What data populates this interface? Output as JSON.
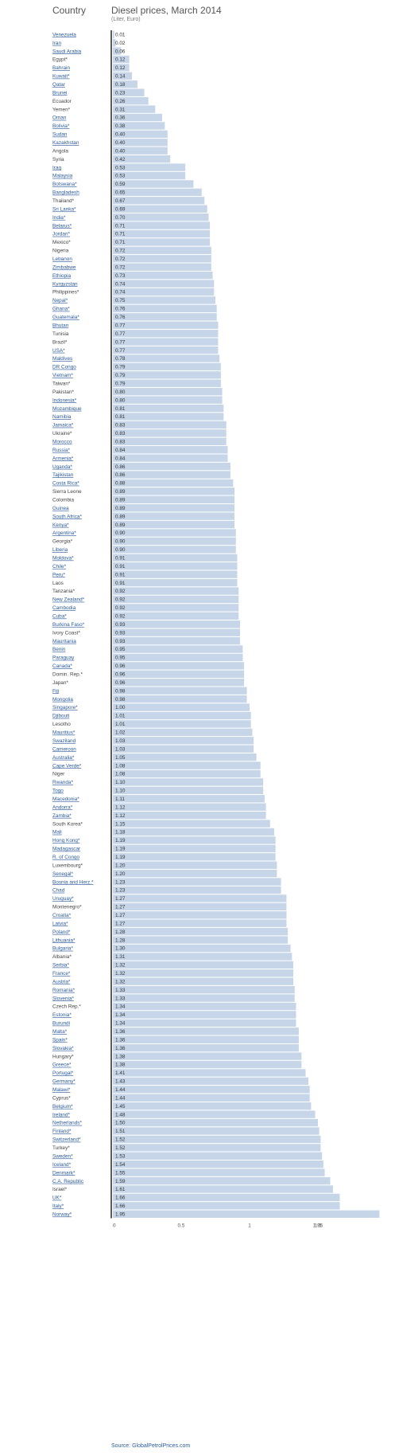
{
  "header": {
    "country_label": "Country",
    "title": "Diesel prices, March 2014",
    "subtitle": "(Liter, Euro)"
  },
  "source": "Source: GlobalPetrolPrices.com",
  "colors": {
    "bar": "#c6d6e8",
    "axis": "#333333",
    "link": "#2b5a9c",
    "plain": "#444444",
    "value": "#333333"
  },
  "chart_data": {
    "type": "bar",
    "orientation": "horizontal",
    "title": "Diesel prices, March 2014",
    "subtitle": "(Liter, Euro)",
    "xlim": [
      0,
      1.05
    ],
    "xticks": [
      0,
      0.5,
      1,
      1.5
    ],
    "xtick_labels": [
      "0",
      "0.5",
      "1",
      "1.5"
    ],
    "max_tick_label": "1.95",
    "categories": [
      "Venezuela",
      "Iran",
      "Saudi Arabia",
      "Egypt*",
      "Bahrain",
      "Kuwait*",
      "Qatar",
      "Brunei",
      "Ecuador",
      "Yemen*",
      "Oman",
      "Bolivia*",
      "Sudan",
      "Kazakhstan",
      "Angola",
      "Syria",
      "Iraq",
      "Malaysia",
      "Botswana*",
      "Bangladesh",
      "Thailand*",
      "Sri Lanka*",
      "India*",
      "Belarus*",
      "Jordan*",
      "Mexico*",
      "Nigeria",
      "Lebanon",
      "Zimbabwe",
      "Ethiopia",
      "Kyrgyzstan",
      "Philippines*",
      "Nepal*",
      "Ghana*",
      "Guatemala*",
      "Bhutan",
      "Tunisia",
      "Brazil*",
      "USA*",
      "Maldives",
      "DR Congo",
      "Vietnam*",
      "Taiwan*",
      "Pakistan*",
      "Indonesia*",
      "Mozambique",
      "Namibia",
      "Jamaica*",
      "Ukraine*",
      "Morocco",
      "Russia*",
      "Armenia*",
      "Uganda*",
      "Tajikistan",
      "Costa Rica*",
      "Sierra Leone",
      "Colombia",
      "Guinea",
      "South Africa*",
      "Kenya*",
      "Argentina*",
      "Georgia*",
      "Liberia",
      "Moldova*",
      "Chile*",
      "Peru*",
      "Laos",
      "Tanzania*",
      "New Zealand*",
      "Cambodia",
      "Cuba*",
      "Burkina Faso*",
      "Ivory Coast*",
      "Mauritania",
      "Benin",
      "Paraguay",
      "Canada*",
      "Domin. Rep.*",
      "Japan*",
      "Fiji",
      "Mongolia",
      "Singapore*",
      "Djibouti",
      "Lesotho",
      "Mauritius*",
      "Swaziland",
      "Cameroon",
      "Australia*",
      "Cape Verde*",
      "Niger",
      "Rwanda*",
      "Togo",
      "Macedonia*",
      "Andorra*",
      "Zambia*",
      "South Korea*",
      "Mali",
      "Hong Kong*",
      "Madagascar",
      "R. of Congo",
      "Luxembourg*",
      "Senegal*",
      "Bosnia and Herz.*",
      "Chad",
      "Uruguay*",
      "Montenegro*",
      "Croatia*",
      "Latvia*",
      "Poland*",
      "Lithuania*",
      "Bulgaria*",
      "Albania*",
      "Serbia*",
      "France*",
      "Austria*",
      "Romania*",
      "Slovenia*",
      "Czech Rep.*",
      "Estonia*",
      "Burundi",
      "Malta*",
      "Spain*",
      "Slovakia*",
      "Hungary*",
      "Greece*",
      "Portugal*",
      "Germany*",
      "Malawi*",
      "Cyprus*",
      "Belgium*",
      "Ireland*",
      "Netherlands*",
      "Finland*",
      "Switzerland*",
      "Turkey*",
      "Sweden*",
      "Iceland*",
      "Denmark*",
      "C.A. Republic",
      "Israel*",
      "UK*",
      "Italy*",
      "Norway*"
    ],
    "values": [
      0.01,
      0.02,
      0.06,
      0.12,
      0.12,
      0.14,
      0.18,
      0.23,
      0.26,
      0.31,
      0.36,
      0.38,
      0.4,
      0.4,
      0.4,
      0.42,
      0.53,
      0.53,
      0.59,
      0.65,
      0.67,
      0.69,
      0.7,
      0.71,
      0.71,
      0.71,
      0.72,
      0.72,
      0.72,
      0.73,
      0.74,
      0.74,
      0.75,
      0.76,
      0.76,
      0.77,
      0.77,
      0.77,
      0.77,
      0.78,
      0.79,
      0.79,
      0.79,
      0.8,
      0.8,
      0.81,
      0.81,
      0.83,
      0.83,
      0.83,
      0.84,
      0.84,
      0.86,
      0.86,
      0.88,
      0.89,
      0.89,
      0.89,
      0.89,
      0.89,
      0.9,
      0.9,
      0.9,
      0.91,
      0.91,
      0.91,
      0.91,
      0.92,
      0.92,
      0.92,
      0.92,
      0.93,
      0.93,
      0.93,
      0.95,
      0.95,
      0.96,
      0.96,
      0.96,
      0.98,
      0.98,
      1.0,
      1.01,
      1.01,
      1.02,
      1.03,
      1.03,
      1.05,
      1.08,
      1.08,
      1.1,
      1.1,
      1.11,
      1.12,
      1.12,
      1.15,
      1.18,
      1.19,
      1.19,
      1.19,
      1.2,
      1.2,
      1.23,
      1.23,
      1.27,
      1.27,
      1.27,
      1.27,
      1.28,
      1.28,
      1.3,
      1.31,
      1.32,
      1.32,
      1.32,
      1.33,
      1.33,
      1.34,
      1.34,
      1.34,
      1.36,
      1.36,
      1.36,
      1.38,
      1.38,
      1.41,
      1.43,
      1.44,
      1.44,
      1.45,
      1.48,
      1.5,
      1.51,
      1.52,
      1.52,
      1.53,
      1.54,
      1.55,
      1.59,
      1.61,
      1.66,
      1.66,
      1.95
    ],
    "value_labels": [
      "0.01",
      "0.02",
      "0.06",
      "0.12",
      "0.12",
      "0.14",
      "0.18",
      "0.23",
      "0.26",
      "0.31",
      "0.36",
      "0.38",
      "0.40",
      "0.40",
      "0.40",
      "0.42",
      "0.53",
      "0.53",
      "0.59",
      "0.65",
      "0.67",
      "0.69",
      "0.70",
      "0.71",
      "0.71",
      "0.71",
      "0.72",
      "0.72",
      "0.72",
      "0.73",
      "0.74",
      "0.74",
      "0.75",
      "0.76",
      "0.76",
      "0.77",
      "0.77",
      "0.77",
      "0.77",
      "0.78",
      "0.79",
      "0.79",
      "0.79",
      "0.80",
      "0.80",
      "0.81",
      "0.81",
      "0.83",
      "0.83",
      "0.83",
      "0.84",
      "0.84",
      "0.86",
      "0.86",
      "0.88",
      "0.89",
      "0.89",
      "0.89",
      "0.89",
      "0.89",
      "0.90",
      "0.90",
      "0.90",
      "0.91",
      "0.91",
      "0.91",
      "0.91",
      "0.92",
      "0.92",
      "0.92",
      "0.92",
      "0.93",
      "0.93",
      "0.93",
      "0.95",
      "0.95",
      "0.96",
      "0.96",
      "0.96",
      "0.98",
      "0.98",
      "1.00",
      "1.01",
      "1.01",
      "1.02",
      "1.03",
      "1.03",
      "1.05",
      "1.08",
      "1.08",
      "1.10",
      "1.10",
      "1.11",
      "1.12",
      "1.12",
      "1.15",
      "1.18",
      "1.19",
      "1.19",
      "1.19",
      "1.20",
      "1.20",
      "1.23",
      "1.23",
      "1.27",
      "1.27",
      "1.27",
      "1.27",
      "1.28",
      "1.28",
      "1.30",
      "1.31",
      "1.32",
      "1.32",
      "1.32",
      "1.33",
      "1.33",
      "1.34",
      "1.34",
      "1.34",
      "1.36",
      "1.36",
      "1.36",
      "1.38",
      "1.38",
      "1.41",
      "1.43",
      "1.44",
      "1.44",
      "1.45",
      "1.48",
      "1.50",
      "1.51",
      "1.52",
      "1.52",
      "1.53",
      "1.54",
      "1.55",
      "1.59",
      "1.61",
      "1.66",
      "1.66",
      "1.95"
    ],
    "linked": [
      true,
      true,
      true,
      false,
      true,
      true,
      true,
      true,
      false,
      false,
      true,
      true,
      true,
      true,
      false,
      false,
      true,
      true,
      true,
      true,
      false,
      true,
      true,
      true,
      true,
      false,
      false,
      true,
      true,
      true,
      true,
      false,
      true,
      true,
      true,
      true,
      false,
      false,
      true,
      true,
      true,
      true,
      false,
      false,
      true,
      true,
      true,
      true,
      false,
      true,
      true,
      true,
      true,
      true,
      true,
      false,
      false,
      true,
      true,
      true,
      true,
      false,
      true,
      true,
      true,
      true,
      false,
      false,
      true,
      true,
      true,
      true,
      false,
      true,
      true,
      true,
      true,
      false,
      false,
      true,
      true,
      true,
      true,
      false,
      true,
      true,
      true,
      true,
      true,
      false,
      true,
      true,
      true,
      true,
      true,
      false,
      true,
      true,
      true,
      true,
      false,
      true,
      true,
      true,
      true,
      false,
      true,
      true,
      true,
      true,
      true,
      false,
      true,
      true,
      true,
      true,
      true,
      false,
      true,
      true,
      true,
      true,
      true,
      false,
      true,
      true,
      true,
      true,
      false,
      true,
      true,
      true,
      true,
      true,
      false,
      true,
      true,
      true,
      true,
      false,
      true,
      true,
      true
    ]
  }
}
